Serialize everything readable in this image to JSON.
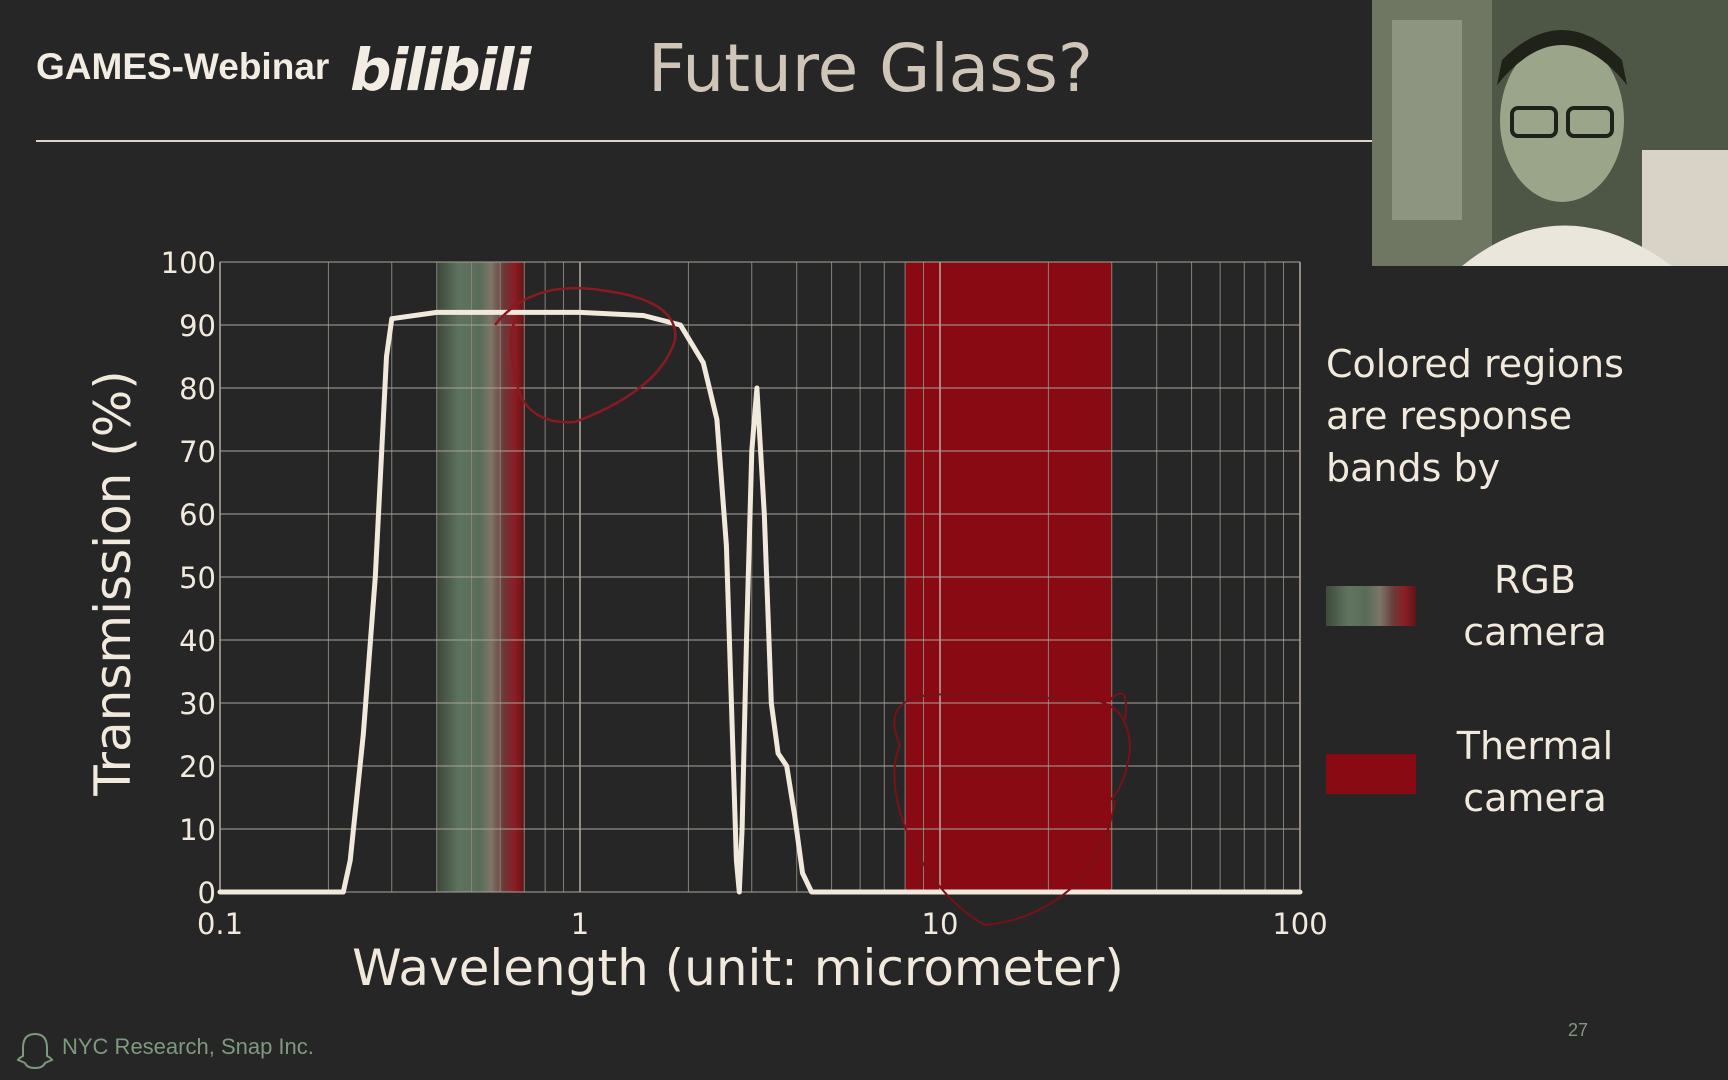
{
  "header": {
    "brand": "GAMES-Webinar",
    "logo": "bilibili",
    "title": "Future Glass?"
  },
  "legend": {
    "description": "Colored regions are response bands by",
    "rgb_label_1": "RGB",
    "rgb_label_2": "camera",
    "thermal_label_1": "Thermal",
    "thermal_label_2": "camera"
  },
  "footer": {
    "org": "NYC Research, Snap Inc.",
    "page": "27",
    "icon": "ghost-icon"
  },
  "colors": {
    "background": "#262626",
    "curve": "#f1e9dc",
    "thermal_band": "#8a0a13",
    "rgb_band": "#5f7560"
  },
  "chart_data": {
    "type": "line",
    "title": "",
    "xlabel": "Wavelength (unit: micrometer)",
    "ylabel": "Transmission (%)",
    "xscale": "log",
    "xlim": [
      0.1,
      100
    ],
    "ylim": [
      0,
      100
    ],
    "x_ticks": [
      "0.1",
      "1",
      "10",
      "100"
    ],
    "y_ticks": [
      "0",
      "10",
      "20",
      "30",
      "40",
      "50",
      "60",
      "70",
      "80",
      "90",
      "100"
    ],
    "grid": true,
    "series": [
      {
        "points": [
          [
            0.1,
            0
          ],
          [
            0.22,
            0
          ],
          [
            0.23,
            5
          ],
          [
            0.25,
            25
          ],
          [
            0.27,
            50
          ],
          [
            0.29,
            85
          ],
          [
            0.3,
            91
          ],
          [
            0.4,
            92
          ],
          [
            1,
            92
          ],
          [
            1.5,
            91.5
          ],
          [
            1.9,
            90
          ],
          [
            2.2,
            84
          ],
          [
            2.4,
            75
          ],
          [
            2.55,
            55
          ],
          [
            2.65,
            25
          ],
          [
            2.72,
            5
          ],
          [
            2.77,
            0
          ],
          [
            2.82,
            10
          ],
          [
            2.9,
            40
          ],
          [
            3.0,
            70
          ],
          [
            3.1,
            80
          ],
          [
            3.25,
            60
          ],
          [
            3.4,
            30
          ],
          [
            3.55,
            22
          ],
          [
            3.75,
            20
          ],
          [
            3.95,
            12
          ],
          [
            4.15,
            3
          ],
          [
            4.4,
            0
          ],
          [
            100,
            0
          ]
        ]
      }
    ],
    "bands": [
      {
        "label": "RGB camera",
        "from": 0.4,
        "to": 0.7
      },
      {
        "label": "Thermal camera",
        "from": 8,
        "to": 30
      }
    ]
  }
}
